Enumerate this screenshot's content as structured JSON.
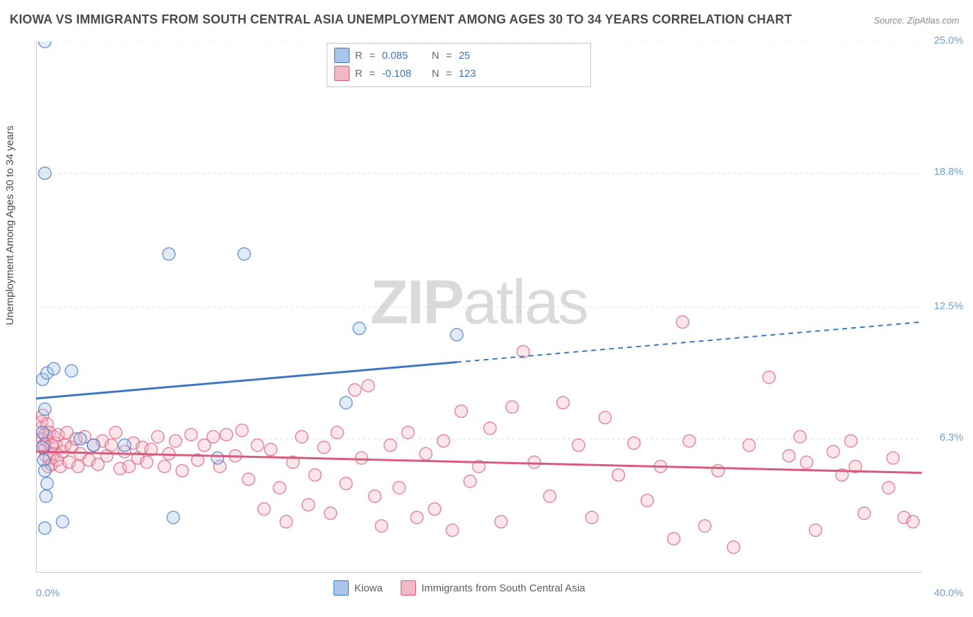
{
  "title": "KIOWA VS IMMIGRANTS FROM SOUTH CENTRAL ASIA UNEMPLOYMENT AMONG AGES 30 TO 34 YEARS CORRELATION CHART",
  "source": "Source: ZipAtlas.com",
  "ylabel": "Unemployment Among Ages 30 to 34 years",
  "watermark_strong": "ZIP",
  "watermark_light": "atlas",
  "chart": {
    "type": "scatter+regression",
    "xlim": [
      0.0,
      40.0
    ],
    "ylim": [
      0.0,
      25.0
    ],
    "y_ticks": [
      6.3,
      12.5,
      18.8,
      25.0
    ],
    "y_tick_labels": [
      "6.3%",
      "12.5%",
      "18.8%",
      "25.0%"
    ],
    "x_tick_min_label": "0.0%",
    "x_tick_max_label": "40.0%",
    "background_color": "#ffffff",
    "grid_color": "#e3e3e3",
    "axis_color": "#b9b9b9",
    "tick_label_color": "#6f9fd8",
    "title_color": "#4a4a4a",
    "title_fontsize": 18,
    "label_fontsize": 15,
    "tick_fontsize": 15,
    "marker_radius": 9,
    "marker_fill_opacity": 0.35,
    "marker_stroke_width": 1.5,
    "trend_line_width": 3,
    "trend_dash_pattern": "7 6"
  },
  "series": [
    {
      "key": "kiowa",
      "label": "Kiowa",
      "color": "#3a76c4",
      "fill": "#a9c6ea",
      "R": "0.085",
      "N": "25",
      "trend": {
        "y0": 8.2,
        "y1": 11.8,
        "x_solid_max": 19.0
      },
      "points": [
        [
          0.4,
          25.0
        ],
        [
          0.4,
          18.8
        ],
        [
          0.3,
          9.1
        ],
        [
          0.5,
          9.4
        ],
        [
          0.8,
          9.6
        ],
        [
          1.6,
          9.5
        ],
        [
          0.4,
          7.7
        ],
        [
          0.3,
          6.6
        ],
        [
          0.3,
          5.9
        ],
        [
          0.35,
          5.3
        ],
        [
          0.4,
          4.8
        ],
        [
          0.5,
          4.2
        ],
        [
          0.45,
          3.6
        ],
        [
          1.2,
          2.4
        ],
        [
          0.4,
          2.1
        ],
        [
          2.0,
          6.3
        ],
        [
          2.6,
          6.0
        ],
        [
          4.0,
          6.0
        ],
        [
          6.0,
          15.0
        ],
        [
          9.4,
          15.0
        ],
        [
          6.2,
          2.6
        ],
        [
          8.2,
          5.4
        ],
        [
          14.0,
          8.0
        ],
        [
          14.6,
          11.5
        ],
        [
          19.0,
          11.2
        ]
      ]
    },
    {
      "key": "immigrants",
      "label": "Immigrants from South Central Asia",
      "color": "#d95a7b",
      "fill": "#f3b8c6",
      "R": "-0.108",
      "N": "123",
      "trend": {
        "y0": 5.7,
        "y1": 4.7,
        "x_solid_max": 40.0
      },
      "points": [
        [
          0.2,
          6.8
        ],
        [
          0.25,
          7.1
        ],
        [
          0.3,
          7.4
        ],
        [
          0.3,
          6.3
        ],
        [
          0.35,
          6.0
        ],
        [
          0.4,
          6.5
        ],
        [
          0.4,
          5.8
        ],
        [
          0.45,
          5.5
        ],
        [
          0.5,
          6.2
        ],
        [
          0.5,
          7.0
        ],
        [
          0.55,
          5.0
        ],
        [
          0.6,
          6.6
        ],
        [
          0.6,
          5.4
        ],
        [
          0.7,
          6.0
        ],
        [
          0.7,
          5.1
        ],
        [
          0.8,
          6.4
        ],
        [
          0.8,
          5.6
        ],
        [
          0.9,
          6.1
        ],
        [
          0.95,
          5.3
        ],
        [
          1.0,
          6.5
        ],
        [
          1.1,
          5.0
        ],
        [
          1.2,
          5.7
        ],
        [
          1.3,
          6.0
        ],
        [
          1.4,
          6.6
        ],
        [
          1.5,
          5.2
        ],
        [
          1.6,
          5.9
        ],
        [
          1.8,
          6.3
        ],
        [
          1.9,
          5.0
        ],
        [
          2.0,
          5.6
        ],
        [
          2.2,
          6.4
        ],
        [
          2.4,
          5.3
        ],
        [
          2.6,
          6.0
        ],
        [
          2.8,
          5.1
        ],
        [
          3.0,
          6.2
        ],
        [
          3.2,
          5.5
        ],
        [
          3.4,
          6.0
        ],
        [
          3.6,
          6.6
        ],
        [
          3.8,
          4.9
        ],
        [
          4.0,
          5.7
        ],
        [
          4.2,
          5.0
        ],
        [
          4.4,
          6.1
        ],
        [
          4.6,
          5.4
        ],
        [
          4.8,
          5.9
        ],
        [
          5.0,
          5.2
        ],
        [
          5.2,
          5.8
        ],
        [
          5.5,
          6.4
        ],
        [
          5.8,
          5.0
        ],
        [
          6.0,
          5.6
        ],
        [
          6.3,
          6.2
        ],
        [
          6.6,
          4.8
        ],
        [
          7.0,
          6.5
        ],
        [
          7.3,
          5.3
        ],
        [
          7.6,
          6.0
        ],
        [
          8.0,
          6.4
        ],
        [
          8.3,
          5.0
        ],
        [
          8.6,
          6.5
        ],
        [
          9.0,
          5.5
        ],
        [
          9.3,
          6.7
        ],
        [
          9.6,
          4.4
        ],
        [
          10.0,
          6.0
        ],
        [
          10.3,
          3.0
        ],
        [
          10.6,
          5.8
        ],
        [
          11.0,
          4.0
        ],
        [
          11.3,
          2.4
        ],
        [
          11.6,
          5.2
        ],
        [
          12.0,
          6.4
        ],
        [
          12.3,
          3.2
        ],
        [
          12.6,
          4.6
        ],
        [
          13.0,
          5.9
        ],
        [
          13.3,
          2.8
        ],
        [
          13.6,
          6.6
        ],
        [
          14.0,
          4.2
        ],
        [
          14.4,
          8.6
        ],
        [
          14.7,
          5.4
        ],
        [
          15.0,
          8.8
        ],
        [
          15.3,
          3.6
        ],
        [
          15.6,
          2.2
        ],
        [
          16.0,
          6.0
        ],
        [
          16.4,
          4.0
        ],
        [
          16.8,
          6.6
        ],
        [
          17.2,
          2.6
        ],
        [
          17.6,
          5.6
        ],
        [
          18.0,
          3.0
        ],
        [
          18.4,
          6.2
        ],
        [
          18.8,
          2.0
        ],
        [
          19.2,
          7.6
        ],
        [
          19.6,
          4.3
        ],
        [
          20.0,
          5.0
        ],
        [
          20.5,
          6.8
        ],
        [
          21.0,
          2.4
        ],
        [
          21.5,
          7.8
        ],
        [
          22.0,
          10.4
        ],
        [
          22.5,
          5.2
        ],
        [
          23.2,
          3.6
        ],
        [
          23.8,
          8.0
        ],
        [
          24.5,
          6.0
        ],
        [
          25.1,
          2.6
        ],
        [
          25.7,
          7.3
        ],
        [
          26.3,
          4.6
        ],
        [
          27.0,
          6.1
        ],
        [
          27.6,
          3.4
        ],
        [
          28.2,
          5.0
        ],
        [
          28.8,
          1.6
        ],
        [
          29.2,
          11.8
        ],
        [
          29.5,
          6.2
        ],
        [
          30.2,
          2.2
        ],
        [
          30.8,
          4.8
        ],
        [
          31.5,
          1.2
        ],
        [
          32.2,
          6.0
        ],
        [
          33.1,
          9.2
        ],
        [
          34.0,
          5.5
        ],
        [
          34.5,
          6.4
        ],
        [
          34.8,
          5.2
        ],
        [
          35.2,
          2.0
        ],
        [
          36.0,
          5.7
        ],
        [
          36.4,
          4.6
        ],
        [
          36.8,
          6.2
        ],
        [
          37.0,
          5.0
        ],
        [
          37.4,
          2.8
        ],
        [
          38.5,
          4.0
        ],
        [
          38.7,
          5.4
        ],
        [
          39.2,
          2.6
        ],
        [
          39.6,
          2.4
        ]
      ]
    }
  ],
  "legend_labels": {
    "R": "R",
    "N": "N",
    "eq": "="
  }
}
